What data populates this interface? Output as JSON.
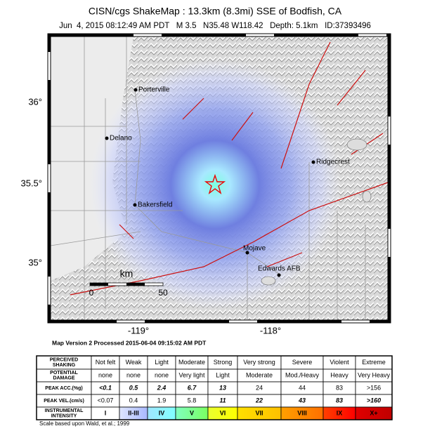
{
  "header": {
    "title": "CISN/cgs ShakeMap : 13.3km (8.3mi) SSE of Bodfish, CA",
    "subtitle": "Jun  4, 2015 08:12:49 AM PDT   M 3.5   N35.48 W118.42   Depth: 5.1km   ID:37393496"
  },
  "map": {
    "lat_labels": [
      "36°",
      "35.5°",
      "35°"
    ],
    "lon_labels": [
      "-119°",
      "-118°"
    ],
    "cities": [
      "Porterville",
      "Delano",
      "Bakersfield",
      "Ridgecrest",
      "Mojave",
      "Edwards AFB"
    ],
    "scale": {
      "unit": "km",
      "start": "0",
      "end": "50"
    }
  },
  "map_version": "Map Version 2 Processed 2015-06-04 09:15:02 AM PDT",
  "legend": {
    "rows": [
      {
        "label": [
          "PERCEIVED",
          "SHAKING"
        ],
        "cells": [
          "Not felt",
          "Weak",
          "Light",
          "Moderate",
          "Strong",
          "Very strong",
          "Severe",
          "Violent",
          "Extreme"
        ]
      },
      {
        "label": [
          "POTENTIAL",
          "DAMAGE"
        ],
        "cells": [
          "none",
          "none",
          "none",
          "Very light",
          "Light",
          "Moderate",
          "Mod./Heavy",
          "Heavy",
          "Very Heavy"
        ]
      },
      {
        "label": [
          "PEAK ACC.(%g)"
        ],
        "cells": [
          "<0.1",
          "0.5",
          "2.4",
          "6.7",
          "13",
          "24",
          "44",
          "83",
          ">156"
        ]
      },
      {
        "label": [
          "PEAK VEL.(cm/s)"
        ],
        "cells": [
          "<0.07",
          "0.4",
          "1.9",
          "5.8",
          "11",
          "22",
          "43",
          "83",
          ">160"
        ]
      },
      {
        "label": [
          "INSTRUMENTAL",
          "INTENSITY"
        ],
        "cells": [
          "I",
          "II-III",
          "IV",
          "V",
          "VI",
          "VII",
          "VIII",
          "IX",
          "X+"
        ]
      }
    ]
  },
  "footnote": "Scale based upon Wald, et al.; 1999"
}
